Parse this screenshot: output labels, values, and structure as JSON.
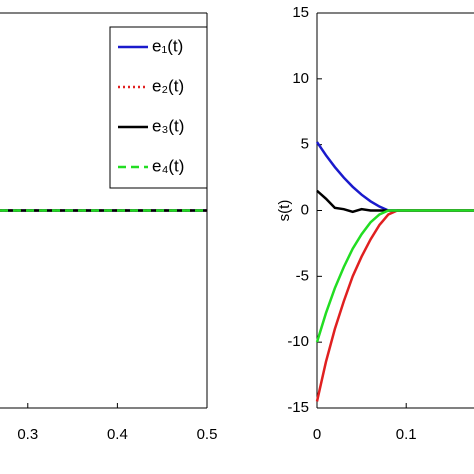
{
  "chart_data": [
    {
      "type": "line",
      "x": [
        0.269,
        0.5
      ],
      "series": [
        {
          "name": "e₁(t)",
          "color": "#1a1acc",
          "dash": "solid",
          "values": [
            0,
            0
          ]
        },
        {
          "name": "e₂(t)",
          "color": "#e02020",
          "dash": "dotted",
          "values": [
            0,
            0
          ]
        },
        {
          "name": "e₃(t)",
          "color": "#000000",
          "dash": "solid",
          "values": [
            0,
            0
          ]
        },
        {
          "name": "e₄(t)",
          "color": "#22dd22",
          "dash": "dashed",
          "values": [
            0,
            0
          ]
        }
      ],
      "xlim": [
        0.269,
        0.5
      ],
      "xticks": [
        0.3,
        0.4,
        0.5
      ],
      "ylim": [
        -1,
        1
      ],
      "legend": "upper right"
    },
    {
      "type": "line",
      "ylabel": "s(t)",
      "x": [
        0,
        0.01,
        0.02,
        0.03,
        0.04,
        0.05,
        0.06,
        0.07,
        0.08,
        0.09,
        0.1,
        0.12,
        0.14,
        0.16,
        0.176
      ],
      "series": [
        {
          "color": "#1a1acc",
          "dash": "solid",
          "values": [
            5.2,
            4.2,
            3.3,
            2.5,
            1.8,
            1.2,
            0.7,
            0.3,
            0,
            0,
            0,
            0,
            0,
            0,
            0
          ]
        },
        {
          "color": "#e02020",
          "dash": "solid",
          "values": [
            -14.5,
            -11.5,
            -9,
            -6.9,
            -5,
            -3.5,
            -2.2,
            -1.1,
            -0.3,
            0,
            0,
            0,
            0,
            0,
            0
          ]
        },
        {
          "color": "#000000",
          "dash": "solid",
          "values": [
            1.5,
            0.9,
            0.2,
            0.1,
            -0.1,
            0.1,
            0,
            0,
            0,
            0,
            0,
            0,
            0,
            0,
            0
          ]
        },
        {
          "color": "#22dd22",
          "dash": "solid",
          "values": [
            -10,
            -7.8,
            -5.9,
            -4.3,
            -2.9,
            -1.8,
            -0.9,
            -0.3,
            0,
            0,
            0,
            0,
            0,
            0,
            0
          ]
        }
      ],
      "xlim": [
        0,
        0.176
      ],
      "xticks": [
        0,
        0.1
      ],
      "ylim": [
        -15,
        15
      ],
      "yticks": [
        -15,
        -10,
        -5,
        0,
        5,
        10,
        15
      ]
    }
  ]
}
